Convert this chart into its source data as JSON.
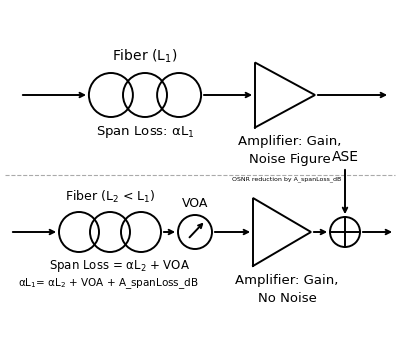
{
  "bg_color": "#ffffff",
  "text_color": "#000000",
  "line_color": "#000000",
  "top_fiber_label": "Fiber (L$_1$)",
  "top_span_label": "Span Loss: αL$_1$",
  "top_amp_label": "Amplifier: Gain,\nNoise Figure",
  "bot_fiber_label": "Fiber (L$_2$ < L$_1$)",
  "bot_voa_label": "VOA",
  "bot_span_label": "Span Loss = αL$_2$ + VOA",
  "bot_eq_label": "αL$_1$= αL$_2$ + VOA + A_spanLoss_dB",
  "bot_amp_label": "Amplifier: Gain,\nNo Noise",
  "bot_ase_label": "ASE",
  "bot_osnr_label": "OSNR reduction by A_spanLoss_dB",
  "fig_width": 4.0,
  "fig_height": 3.5,
  "dpi": 100
}
